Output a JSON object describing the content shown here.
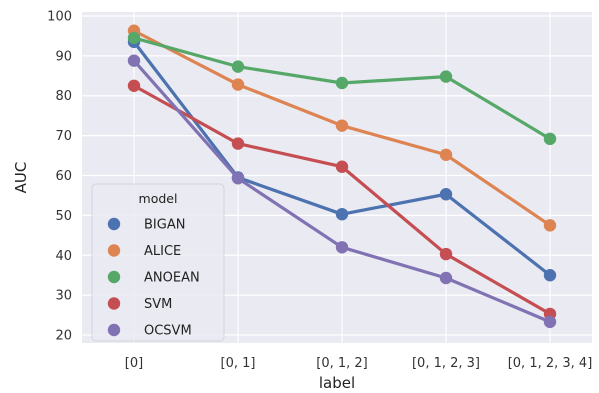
{
  "chart_data": {
    "type": "line",
    "title": "",
    "xlabel": "label",
    "ylabel": "AUC",
    "categories": [
      "[0]",
      "[0, 1]",
      "[0, 1, 2]",
      "[0, 1, 2, 3]",
      "[0, 1, 2, 3, 4]"
    ],
    "ylim": [
      18,
      101
    ],
    "yticks": [
      20,
      30,
      40,
      50,
      60,
      70,
      80,
      90,
      100
    ],
    "grid": true,
    "background": "#eaeaf2",
    "legend": {
      "title": "model",
      "placement": "lower-left"
    },
    "series": [
      {
        "name": "BIGAN",
        "color": "#4c72b0",
        "values": [
          93.5,
          59.5,
          50.3,
          55.3,
          35.0
        ]
      },
      {
        "name": "ALICE",
        "color": "#dd8452",
        "values": [
          96.3,
          82.8,
          72.5,
          65.2,
          47.5
        ]
      },
      {
        "name": "ANOEAN",
        "color": "#55a868",
        "values": [
          94.5,
          87.3,
          83.2,
          84.8,
          69.2
        ]
      },
      {
        "name": "SVM",
        "color": "#c44e52",
        "values": [
          82.5,
          68.0,
          62.2,
          40.3,
          25.3
        ]
      },
      {
        "name": "OCSVM",
        "color": "#8172b3",
        "values": [
          88.8,
          59.3,
          42.0,
          34.3,
          23.3
        ]
      }
    ]
  }
}
